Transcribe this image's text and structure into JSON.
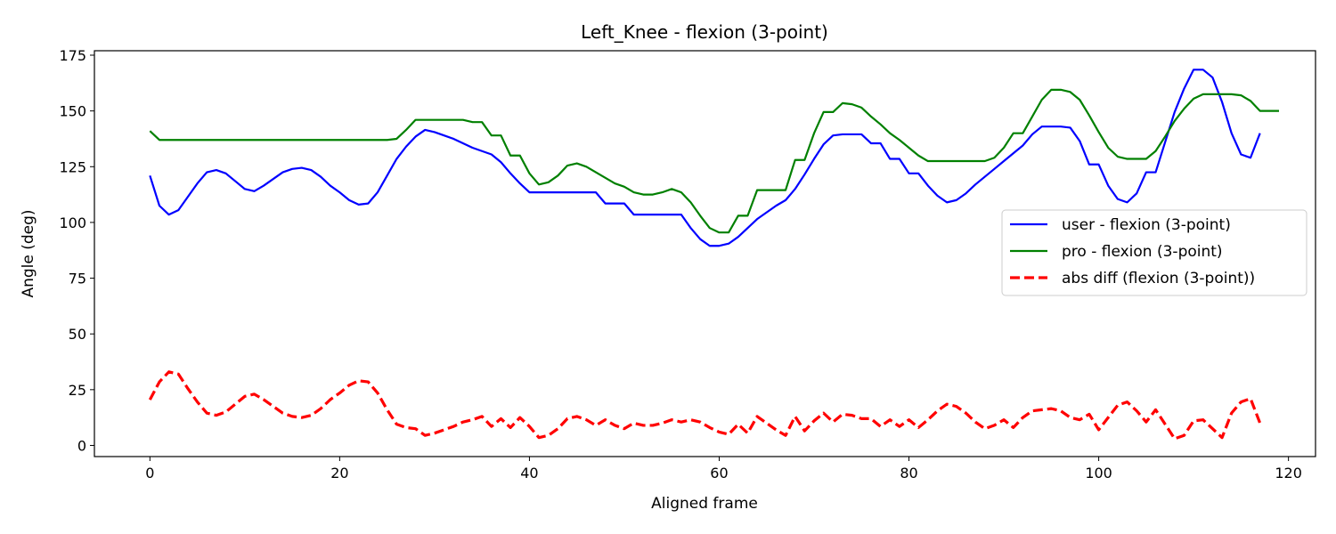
{
  "chart_data": {
    "type": "line",
    "title": "Left_Knee - flexion (3-point)",
    "xlabel": "Aligned frame",
    "ylabel": "Angle (deg)",
    "xlim": [
      -5.85,
      122.85
    ],
    "ylim": [
      -5,
      177
    ],
    "xticks": [
      0,
      20,
      40,
      60,
      80,
      100,
      120
    ],
    "yticks": [
      0,
      25,
      50,
      75,
      100,
      125,
      150,
      175
    ],
    "grid": false,
    "legend_position": "center-right",
    "series": [
      {
        "name": "user - flexion (3-point)",
        "color": "#0000ff",
        "dash": "solid",
        "values": [
          121,
          107.5,
          103.5,
          105.5,
          111.5,
          117.5,
          122.5,
          123.5,
          122,
          118.5,
          115,
          114,
          116.5,
          119.5,
          122.5,
          124,
          124.5,
          123.5,
          120.5,
          116.5,
          113.5,
          110,
          108,
          108.5,
          113.5,
          121,
          128.5,
          134,
          138.5,
          141.5,
          140.5,
          139,
          137.5,
          135.5,
          133.5,
          132,
          130.5,
          127,
          122,
          117.5,
          113.5,
          113.5,
          113.5,
          113.5,
          113.5,
          113.5,
          113.5,
          113.5,
          108.5,
          108.5,
          108.5,
          103.5,
          103.5,
          103.5,
          103.5,
          103.5,
          103.5,
          97.5,
          92.5,
          89.5,
          89.5,
          90.5,
          93.5,
          97.5,
          101.5,
          104.5,
          107.5,
          110,
          115,
          121.5,
          128.5,
          135,
          139,
          139.5,
          139.5,
          139.5,
          135.5,
          135.5,
          128.5,
          128.5,
          122,
          122,
          116.5,
          112,
          109,
          110,
          113,
          117,
          120.5,
          124,
          127.5,
          131,
          134.5,
          139.5,
          143,
          143,
          143,
          142.5,
          136.5,
          126,
          126,
          116.5,
          110.5,
          109,
          113,
          122.5,
          122.5,
          136,
          149.5,
          160,
          168.5,
          168.5,
          165,
          154,
          140,
          130.5,
          129,
          140
        ]
      },
      {
        "name": "pro - flexion (3-point)",
        "color": "#008000",
        "dash": "solid",
        "values": [
          141,
          137,
          137,
          137,
          137,
          137,
          137,
          137,
          137,
          137,
          137,
          137,
          137,
          137,
          137,
          137,
          137,
          137,
          137,
          137,
          137,
          137,
          137,
          137,
          137,
          137,
          137.5,
          141.5,
          146,
          146,
          146,
          146,
          146,
          146,
          145,
          145,
          139,
          139,
          130,
          130,
          122,
          117,
          118,
          121,
          125.5,
          126.5,
          125,
          122.5,
          120,
          117.5,
          116,
          113.5,
          112.5,
          112.5,
          113.5,
          115,
          113.5,
          109,
          103,
          97.5,
          95.5,
          95.5,
          103,
          103,
          114.5,
          114.5,
          114.5,
          114.5,
          128,
          128,
          140,
          149.5,
          149.5,
          153.5,
          153,
          151.5,
          147.5,
          144,
          140,
          137,
          133.5,
          130,
          127.5,
          127.5,
          127.5,
          127.5,
          127.5,
          127.5,
          127.5,
          129,
          133.5,
          140,
          140,
          147.5,
          155,
          159.5,
          159.5,
          158.5,
          155,
          148,
          140.5,
          133.5,
          129.5,
          128.5,
          128.5,
          128.5,
          132,
          138.5,
          145.5,
          151,
          155.5,
          157.5,
          157.5,
          157.5,
          157.5,
          157,
          154.5,
          150,
          150,
          150
        ]
      },
      {
        "name": "abs diff (flexion (3-point))",
        "color": "#ff0000",
        "dash": "dashed",
        "values": [
          20.5,
          28.5,
          33,
          32,
          25.5,
          19.5,
          14.5,
          13.5,
          15,
          18.5,
          22,
          23,
          20.5,
          17.5,
          14.5,
          13,
          12.5,
          13.5,
          16.5,
          20.5,
          23.5,
          27,
          29,
          28.5,
          23.5,
          16,
          9.5,
          8,
          7.5,
          4.5,
          5.5,
          7,
          8.5,
          10.5,
          11.5,
          13,
          8.5,
          12,
          8,
          12.5,
          8.5,
          3.5,
          4.5,
          7.5,
          12,
          13,
          11.5,
          9,
          11.5,
          9,
          7.5,
          10,
          9,
          9,
          10,
          11.5,
          10.5,
          11.5,
          10.5,
          8,
          6,
          5,
          9.5,
          5.5,
          13,
          10,
          7,
          4.5,
          13,
          6.5,
          11,
          14.5,
          10.5,
          14,
          13.5,
          12,
          12,
          8.5,
          11.5,
          8.5,
          11.5,
          8,
          11.5,
          15.5,
          18.5,
          17.5,
          14.5,
          10.5,
          7.5,
          9,
          11.5,
          8,
          12.5,
          15.5,
          16,
          16.5,
          15.5,
          12.5,
          11.5,
          14,
          7,
          12.5,
          18,
          19.5,
          15.5,
          10.5,
          16,
          9.5,
          3,
          4.5,
          11,
          11.5,
          7.5,
          3.5,
          14.5,
          19.5,
          21,
          10
        ]
      }
    ]
  }
}
